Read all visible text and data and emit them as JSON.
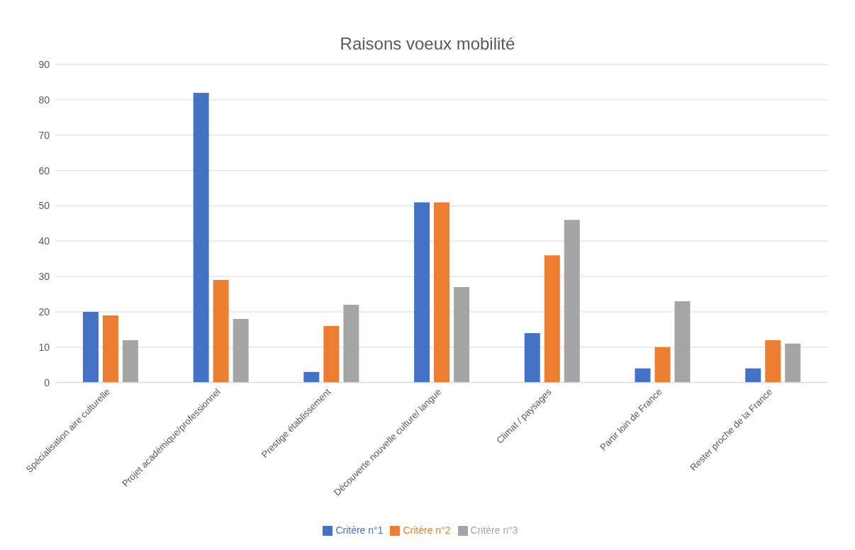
{
  "chart_data": {
    "type": "bar",
    "title": "Raisons voeux mobilité",
    "categories": [
      "Spécialisation aire culturelle",
      "Projet académique/professionnel",
      "Prestige établissement",
      "Découverte nouvelle culture/ langue",
      "Climat / paysages",
      "Partir loin de France",
      "Rester proche de la France"
    ],
    "series": [
      {
        "name": "Critère n°1",
        "color": "#4472c4",
        "values": [
          20,
          82,
          3,
          51,
          14,
          4,
          4
        ]
      },
      {
        "name": "Critère n°2",
        "color": "#ed7d31",
        "values": [
          19,
          29,
          16,
          51,
          36,
          10,
          12
        ]
      },
      {
        "name": "Critère n°3",
        "color": "#a5a5a5",
        "values": [
          12,
          18,
          22,
          27,
          46,
          23,
          11
        ]
      }
    ],
    "ylim": [
      0,
      90
    ],
    "yticks": [
      0,
      10,
      20,
      30,
      40,
      50,
      60,
      70,
      80,
      90
    ],
    "grid": "y",
    "legend": "bottom"
  }
}
